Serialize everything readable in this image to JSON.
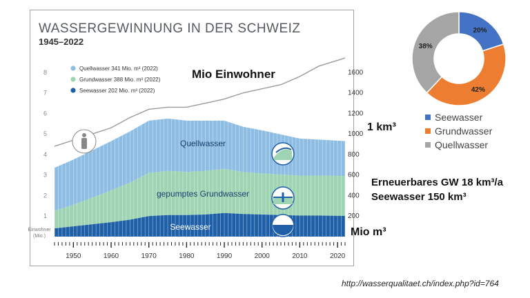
{
  "panel": {
    "title": "WASSERGEWINNUNG IN DER SCHWEIZ",
    "subtitle": "1945–2022"
  },
  "overlays": {
    "mio_einwohner": "Mio Einwohner",
    "km3": "1 km³",
    "erneuerbares": "Erneuerbares GW 18 km³/a",
    "seewasser_vol": "Seewasser 150 km³",
    "mio_m3": "Mio m³"
  },
  "source": "http://wasserqualitaet.ch/index.php?id=764",
  "chart_data": [
    {
      "type": "area",
      "title": "WASSERGEWINNUNG IN DER SCHWEIZ",
      "subtitle": "1945–2022",
      "x": [
        1945,
        1950,
        1955,
        1960,
        1965,
        1970,
        1975,
        1980,
        1985,
        1990,
        1995,
        2000,
        2005,
        2010,
        2015,
        2022
      ],
      "xlim": [
        1945,
        2022
      ],
      "xticks": [
        1950,
        1960,
        1970,
        1980,
        1990,
        2000,
        2010,
        2020
      ],
      "ylim_left": [
        0,
        8
      ],
      "yticks_left": [
        "1",
        "2",
        "3",
        "4",
        "5",
        "6",
        "7",
        "8"
      ],
      "ylabel_left": "Einwohner (Mio.)",
      "ylim_right": [
        0,
        1700
      ],
      "yticks_right": [
        "200",
        "400",
        "600",
        "800",
        "1000",
        "1200",
        "1400",
        "1600"
      ],
      "area_labels": {
        "quell": "Quellwasser",
        "grund": "gepumptes Grundwasser",
        "see": "Seewasser"
      },
      "legend": [
        {
          "name": "Quellwasser 341 Mio. m³ (2022)",
          "color": "#8dbde3"
        },
        {
          "name": "Grundwasser 388 Mio. m³ (2022)",
          "color": "#9fd4b3"
        },
        {
          "name": "Seewasser 202 Mio. m³ (2022)",
          "color": "#1f5fa8"
        }
      ],
      "series": [
        {
          "key": "see",
          "color": "#1f5fa8",
          "values": [
            80,
            100,
            120,
            140,
            165,
            200,
            210,
            210,
            215,
            230,
            220,
            215,
            210,
            205,
            205,
            202
          ]
        },
        {
          "key": "grund",
          "color": "#9fd4b3",
          "values": [
            170,
            210,
            260,
            310,
            360,
            420,
            430,
            420,
            425,
            430,
            410,
            400,
            395,
            390,
            390,
            388
          ]
        },
        {
          "key": "quell",
          "color": "#8dbde3",
          "values": [
            420,
            440,
            460,
            480,
            500,
            510,
            510,
            500,
            490,
            470,
            440,
            420,
            390,
            360,
            350,
            341
          ]
        },
        {
          "key": "einwohner",
          "color": "#9a9a9a",
          "values": [
            4.4,
            4.7,
            5.0,
            5.3,
            5.8,
            6.2,
            6.3,
            6.3,
            6.5,
            6.7,
            7.0,
            7.2,
            7.4,
            7.8,
            8.3,
            8.7
          ]
        }
      ]
    },
    {
      "type": "pie",
      "donut": true,
      "slices": [
        {
          "label": "Seewasser",
          "value": 20,
          "color": "#4472c4"
        },
        {
          "label": "Grundwasser",
          "value": 42,
          "color": "#ed7d31"
        },
        {
          "label": "Quellwasser",
          "value": 38,
          "color": "#a5a5a5"
        }
      ],
      "labels": [
        "20%",
        "42%",
        "38%"
      ]
    }
  ]
}
